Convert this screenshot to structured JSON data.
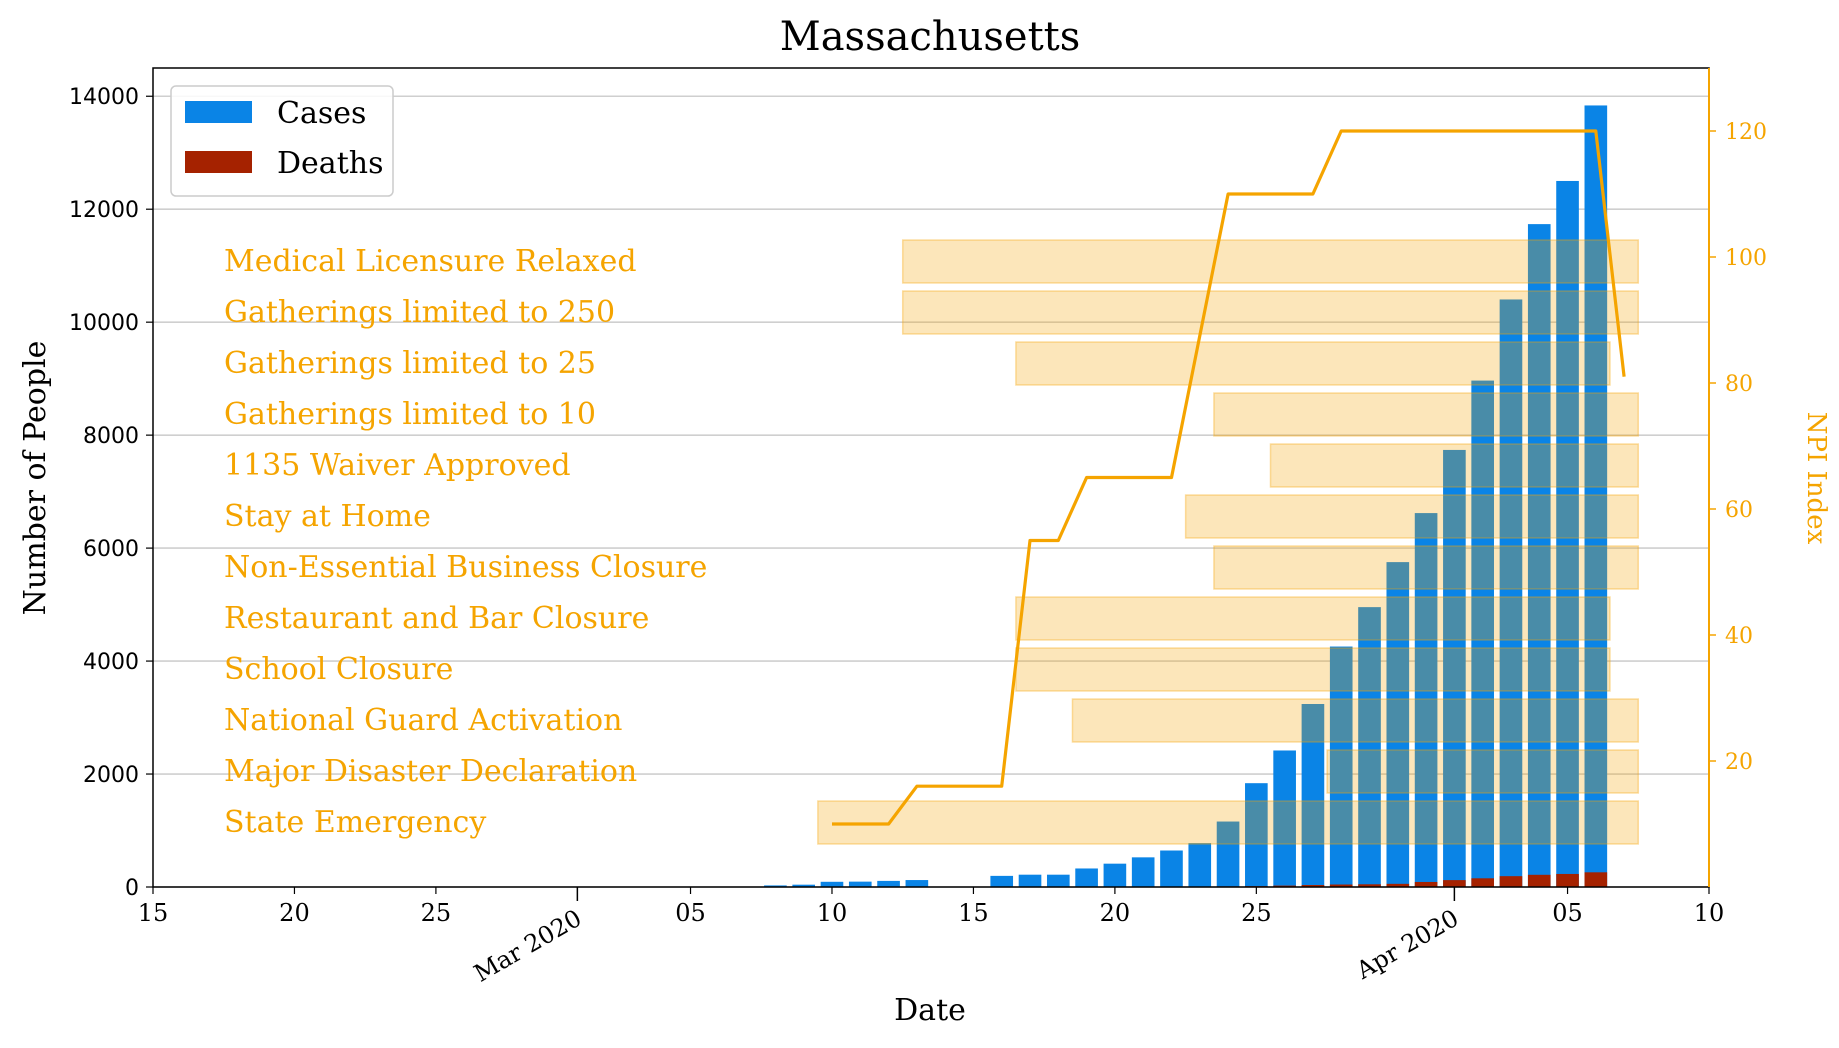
{
  "chart_data": {
    "type": "bar",
    "title": "Massachusetts",
    "xlabel": "Date",
    "ylabel": "Number of People",
    "y2label": "NPI Index",
    "xlim": [
      "2020-02-15",
      "2020-04-10"
    ],
    "ylim": [
      0,
      14500
    ],
    "y2lim": [
      0,
      130
    ],
    "x_ticks": [
      {
        "date": "2020-02-15",
        "label": "15"
      },
      {
        "date": "2020-02-20",
        "label": "20"
      },
      {
        "date": "2020-02-25",
        "label": "25"
      },
      {
        "date": "2020-03-01",
        "label": "Mar 2020",
        "major": true
      },
      {
        "date": "2020-03-05",
        "label": "05"
      },
      {
        "date": "2020-03-10",
        "label": "10"
      },
      {
        "date": "2020-03-15",
        "label": "15"
      },
      {
        "date": "2020-03-20",
        "label": "20"
      },
      {
        "date": "2020-03-25",
        "label": "25"
      },
      {
        "date": "2020-04-01",
        "label": "Apr 2020",
        "major": true
      },
      {
        "date": "2020-04-05",
        "label": "05"
      },
      {
        "date": "2020-04-10",
        "label": "10"
      }
    ],
    "y_ticks": [
      0,
      2000,
      4000,
      6000,
      8000,
      10000,
      12000,
      14000
    ],
    "y2_ticks": [
      20,
      40,
      60,
      80,
      100,
      120
    ],
    "grid": "horizontal",
    "legend_position": "top-left",
    "series": [
      {
        "name": "Cases",
        "color": "#0a84e6",
        "points": [
          {
            "x": "2020-03-08",
            "y": 28
          },
          {
            "x": "2020-03-09",
            "y": 41
          },
          {
            "x": "2020-03-10",
            "y": 92
          },
          {
            "x": "2020-03-11",
            "y": 95
          },
          {
            "x": "2020-03-12",
            "y": 108
          },
          {
            "x": "2020-03-13",
            "y": 123
          },
          {
            "x": "2020-03-16",
            "y": 197
          },
          {
            "x": "2020-03-17",
            "y": 218
          },
          {
            "x": "2020-03-18",
            "y": 218
          },
          {
            "x": "2020-03-19",
            "y": 328
          },
          {
            "x": "2020-03-20",
            "y": 413
          },
          {
            "x": "2020-03-21",
            "y": 525
          },
          {
            "x": "2020-03-22",
            "y": 646
          },
          {
            "x": "2020-03-23",
            "y": 777
          },
          {
            "x": "2020-03-24",
            "y": 1159
          },
          {
            "x": "2020-03-25",
            "y": 1838
          },
          {
            "x": "2020-03-26",
            "y": 2417
          },
          {
            "x": "2020-03-27",
            "y": 3240
          },
          {
            "x": "2020-03-28",
            "y": 4257
          },
          {
            "x": "2020-03-29",
            "y": 4955
          },
          {
            "x": "2020-03-30",
            "y": 5752
          },
          {
            "x": "2020-03-31",
            "y": 6620
          },
          {
            "x": "2020-04-01",
            "y": 7738
          },
          {
            "x": "2020-04-02",
            "y": 8966
          },
          {
            "x": "2020-04-03",
            "y": 10402
          },
          {
            "x": "2020-04-04",
            "y": 11736
          },
          {
            "x": "2020-04-05",
            "y": 12500
          },
          {
            "x": "2020-04-06",
            "y": 13837
          }
        ]
      },
      {
        "name": "Deaths",
        "color": "#a52200",
        "points": [
          {
            "x": "2020-03-20",
            "y": 1
          },
          {
            "x": "2020-03-21",
            "y": 5
          },
          {
            "x": "2020-03-22",
            "y": 5
          },
          {
            "x": "2020-03-23",
            "y": 9
          },
          {
            "x": "2020-03-24",
            "y": 11
          },
          {
            "x": "2020-03-25",
            "y": 15
          },
          {
            "x": "2020-03-26",
            "y": 25
          },
          {
            "x": "2020-03-27",
            "y": 35
          },
          {
            "x": "2020-03-28",
            "y": 44
          },
          {
            "x": "2020-03-29",
            "y": 48
          },
          {
            "x": "2020-03-30",
            "y": 56
          },
          {
            "x": "2020-03-31",
            "y": 89
          },
          {
            "x": "2020-04-01",
            "y": 122
          },
          {
            "x": "2020-04-02",
            "y": 154
          },
          {
            "x": "2020-04-03",
            "y": 192
          },
          {
            "x": "2020-04-04",
            "y": 216
          },
          {
            "x": "2020-04-05",
            "y": 231
          },
          {
            "x": "2020-04-06",
            "y": 260
          }
        ]
      }
    ],
    "npi_line": {
      "color": "#f5a400",
      "axis": "right",
      "points": [
        {
          "x": "2020-03-10",
          "y": 10
        },
        {
          "x": "2020-03-12",
          "y": 10
        },
        {
          "x": "2020-03-13",
          "y": 16
        },
        {
          "x": "2020-03-16",
          "y": 16
        },
        {
          "x": "2020-03-17",
          "y": 55
        },
        {
          "x": "2020-03-18",
          "y": 55
        },
        {
          "x": "2020-03-19",
          "y": 65
        },
        {
          "x": "2020-03-22",
          "y": 65
        },
        {
          "x": "2020-03-24",
          "y": 110
        },
        {
          "x": "2020-03-27",
          "y": 110
        },
        {
          "x": "2020-03-28",
          "y": 120
        },
        {
          "x": "2020-04-06",
          "y": 120
        },
        {
          "x": "2020-04-07",
          "y": 81
        }
      ]
    },
    "npis": {
      "color": "#f5a400",
      "items": [
        {
          "label": "Medical Licensure Relaxed",
          "start": "2020-03-13",
          "end": "2020-04-07"
        },
        {
          "label": "Gatherings limited to 250",
          "start": "2020-03-13",
          "end": "2020-04-07"
        },
        {
          "label": "Gatherings limited to 25",
          "start": "2020-03-17",
          "end": "2020-04-06"
        },
        {
          "label": "Gatherings limited to 10",
          "start": "2020-03-24",
          "end": "2020-04-07"
        },
        {
          "label": "1135 Waiver Approved",
          "start": "2020-03-26",
          "end": "2020-04-07"
        },
        {
          "label": "Stay at Home",
          "start": "2020-03-23",
          "end": "2020-04-07"
        },
        {
          "label": "Non-Essential Business Closure",
          "start": "2020-03-24",
          "end": "2020-04-07"
        },
        {
          "label": "Restaurant and Bar Closure",
          "start": "2020-03-17",
          "end": "2020-04-06"
        },
        {
          "label": "School Closure",
          "start": "2020-03-17",
          "end": "2020-04-06"
        },
        {
          "label": "National Guard Activation",
          "start": "2020-03-19",
          "end": "2020-04-07"
        },
        {
          "label": "Major Disaster Declaration",
          "start": "2020-03-28",
          "end": "2020-04-07"
        },
        {
          "label": "State Emergency",
          "start": "2020-03-10",
          "end": "2020-04-07"
        }
      ]
    }
  }
}
